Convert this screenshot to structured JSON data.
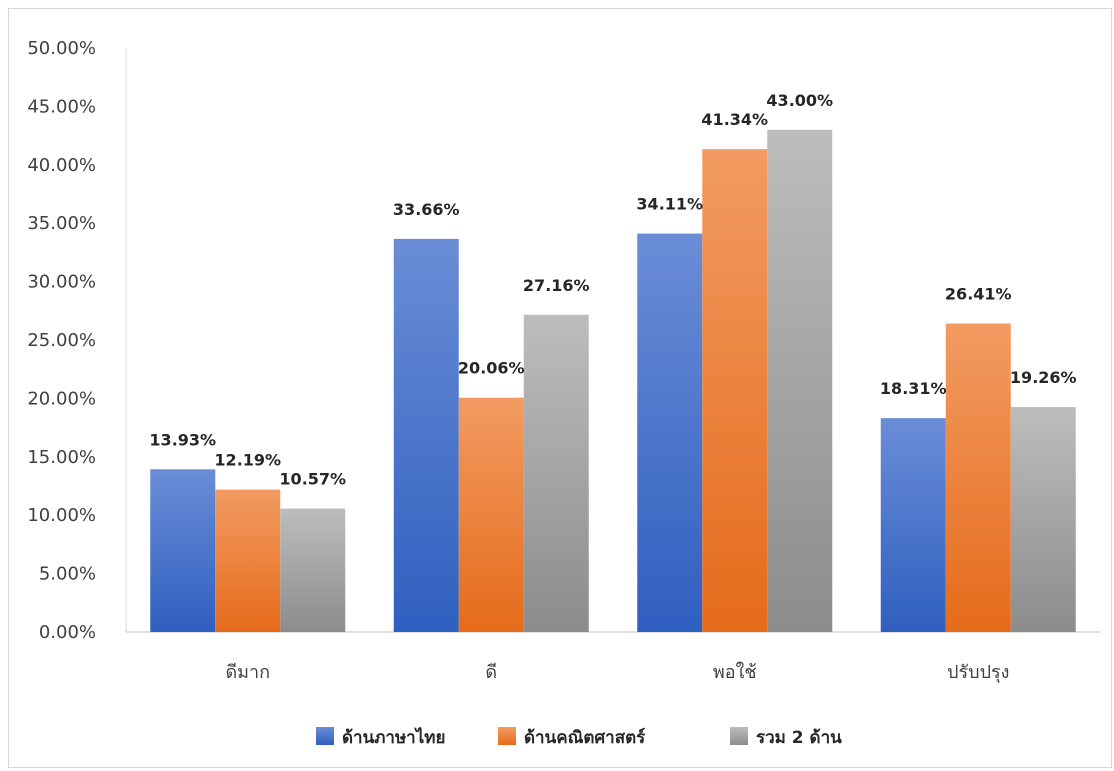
{
  "chart_data": {
    "type": "bar",
    "title": "",
    "xlabel": "",
    "ylabel": "",
    "categories": [
      "ดีมาก",
      "ดี",
      "พอใช้",
      "ปรับปรุง"
    ],
    "ylim": [
      0,
      50
    ],
    "yticks": [
      "0.00%",
      "5.00%",
      "10.00%",
      "15.00%",
      "20.00%",
      "25.00%",
      "30.00%",
      "35.00%",
      "40.00%",
      "45.00%",
      "50.00%"
    ],
    "grid": false,
    "legend_position": "bottom",
    "series": [
      {
        "name": "ด้านภาษาไทย",
        "color": "#4472C4",
        "values": [
          13.93,
          33.66,
          34.11,
          18.31
        ],
        "labels": [
          "13.93%",
          "33.66%",
          "34.11%",
          "18.31%"
        ]
      },
      {
        "name": "ด้านคณิตศาสตร์",
        "color": "#ED7D31",
        "values": [
          12.19,
          20.06,
          41.34,
          26.41
        ],
        "labels": [
          "12.19%",
          "20.06%",
          "41.34%",
          "26.41%"
        ]
      },
      {
        "name": "รวม 2 ด้าน",
        "color": "#A5A5A5",
        "values": [
          10.57,
          27.16,
          43.0,
          19.26
        ],
        "labels": [
          "10.57%",
          "27.16%",
          "43.00%",
          "19.26%"
        ]
      }
    ]
  }
}
